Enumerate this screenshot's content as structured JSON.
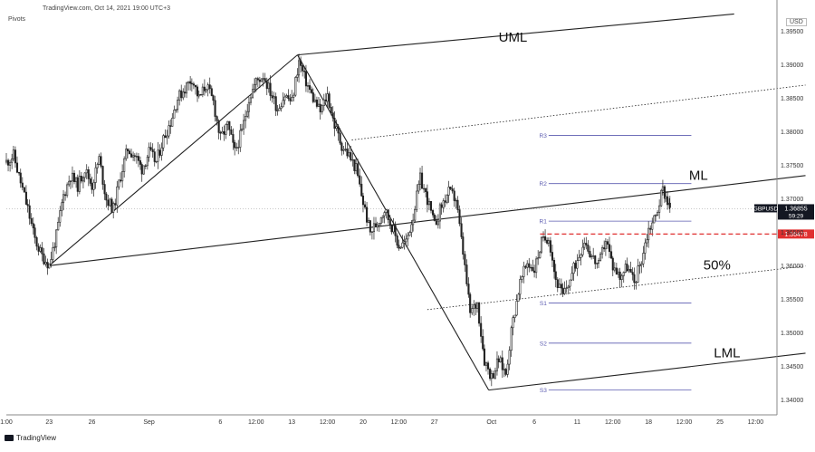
{
  "header": {
    "source": "TradingView.com, Oct 14, 2021 19:00 UTC+3",
    "indicator": "Pivots",
    "currency": "USD"
  },
  "footer": {
    "brand": "TradingView"
  },
  "colors": {
    "candle": "#222222",
    "pitchfork": "#222222",
    "pivot": "#5b5bb0",
    "level": "#e03030",
    "grid": "#c8c8c8"
  },
  "chart_data": {
    "type": "candlestick",
    "symbol": "GBPUSD",
    "timeframe": "1h",
    "y_axis": {
      "ticks": [
        "1.39500",
        "1.39000",
        "1.38500",
        "1.38000",
        "1.37500",
        "1.37000",
        "1.36500",
        "1.36000",
        "1.35500",
        "1.35000",
        "1.34500",
        "1.34000"
      ],
      "range": [
        1.3378,
        1.3978
      ]
    },
    "x_axis": {
      "ticks": [
        {
          "label": "1:00",
          "d": 0
        },
        {
          "label": "23",
          "d": 3
        },
        {
          "label": "26",
          "d": 6
        },
        {
          "label": "Sep",
          "d": 10
        },
        {
          "label": "6",
          "d": 15
        },
        {
          "label": "12:00",
          "d": 17.5
        },
        {
          "label": "13",
          "d": 20
        },
        {
          "label": "12:00",
          "d": 22.5
        },
        {
          "label": "20",
          "d": 25
        },
        {
          "label": "12:00",
          "d": 27.5
        },
        {
          "label": "27",
          "d": 30
        },
        {
          "label": "Oct",
          "d": 34
        },
        {
          "label": "6",
          "d": 37
        },
        {
          "label": "11",
          "d": 40
        },
        {
          "label": "12:00",
          "d": 42.5
        },
        {
          "label": "18",
          "d": 45
        },
        {
          "label": "12:00",
          "d": 47.5
        },
        {
          "label": "25",
          "d": 50
        },
        {
          "label": "12:00",
          "d": 52.5
        }
      ],
      "range": [
        0,
        54
      ]
    },
    "price_path": [
      [
        0,
        1.3755
      ],
      [
        0.5,
        1.3765
      ],
      [
        1,
        1.3725
      ],
      [
        1.5,
        1.3685
      ],
      [
        2,
        1.364
      ],
      [
        2.5,
        1.3615
      ],
      [
        3,
        1.3602
      ],
      [
        3.5,
        1.3645
      ],
      [
        4,
        1.3705
      ],
      [
        4.5,
        1.3735
      ],
      [
        5,
        1.372
      ],
      [
        5.5,
        1.3745
      ],
      [
        6,
        1.372
      ],
      [
        6.5,
        1.376
      ],
      [
        7,
        1.37
      ],
      [
        7.5,
        1.3685
      ],
      [
        8,
        1.3735
      ],
      [
        8.5,
        1.3775
      ],
      [
        9,
        1.3765
      ],
      [
        9.5,
        1.3745
      ],
      [
        10,
        1.377
      ],
      [
        10.5,
        1.3755
      ],
      [
        11,
        1.379
      ],
      [
        11.5,
        1.3815
      ],
      [
        12,
        1.385
      ],
      [
        12.5,
        1.3865
      ],
      [
        13,
        1.388
      ],
      [
        13.5,
        1.385
      ],
      [
        14,
        1.387
      ],
      [
        14.5,
        1.3845
      ],
      [
        15,
        1.379
      ],
      [
        15.5,
        1.381
      ],
      [
        16,
        1.377
      ],
      [
        16.5,
        1.38
      ],
      [
        17,
        1.385
      ],
      [
        17.5,
        1.3875
      ],
      [
        18,
        1.3885
      ],
      [
        18.5,
        1.386
      ],
      [
        19,
        1.3835
      ],
      [
        19.5,
        1.3855
      ],
      [
        20,
        1.3845
      ],
      [
        20.5,
        1.3905
      ],
      [
        21,
        1.3875
      ],
      [
        21.5,
        1.385
      ],
      [
        22,
        1.383
      ],
      [
        22.5,
        1.3855
      ],
      [
        23,
        1.381
      ],
      [
        23.5,
        1.378
      ],
      [
        24,
        1.3765
      ],
      [
        24.5,
        1.3745
      ],
      [
        25,
        1.3695
      ],
      [
        25.5,
        1.365
      ],
      [
        26,
        1.3665
      ],
      [
        26.5,
        1.3685
      ],
      [
        27,
        1.366
      ],
      [
        27.5,
        1.363
      ],
      [
        28,
        1.3635
      ],
      [
        28.5,
        1.3675
      ],
      [
        29,
        1.373
      ],
      [
        29.5,
        1.37
      ],
      [
        30,
        1.366
      ],
      [
        30.5,
        1.369
      ],
      [
        31,
        1.371
      ],
      [
        31.5,
        1.37
      ],
      [
        32,
        1.362
      ],
      [
        32.5,
        1.353
      ],
      [
        33,
        1.3545
      ],
      [
        33.5,
        1.346
      ],
      [
        34,
        1.3435
      ],
      [
        34.5,
        1.346
      ],
      [
        35,
        1.344
      ],
      [
        35.5,
        1.352
      ],
      [
        36,
        1.3575
      ],
      [
        36.5,
        1.3605
      ],
      [
        37,
        1.3595
      ],
      [
        37.5,
        1.3635
      ],
      [
        38,
        1.3645
      ],
      [
        38.5,
        1.358
      ],
      [
        39,
        1.3555
      ],
      [
        39.5,
        1.358
      ],
      [
        40,
        1.361
      ],
      [
        40.5,
        1.364
      ],
      [
        41,
        1.3615
      ],
      [
        41.5,
        1.36
      ],
      [
        42,
        1.364
      ],
      [
        42.5,
        1.36
      ],
      [
        43,
        1.3585
      ],
      [
        43.5,
        1.36
      ],
      [
        44,
        1.3575
      ],
      [
        44.5,
        1.361
      ],
      [
        45,
        1.3655
      ],
      [
        45.5,
        1.3675
      ],
      [
        46,
        1.3715
      ],
      [
        46.2,
        1.3705
      ],
      [
        46.5,
        1.3688
      ]
    ],
    "current_price": {
      "label": "GBPUSD",
      "value": "1.36855",
      "countdown": "59:29",
      "y": 1.36855
    },
    "level": {
      "value": "1.36478",
      "y": 1.36478,
      "x_start": 37.4
    },
    "pivots": [
      {
        "label": "R3",
        "y": 1.3795
      },
      {
        "label": "R2",
        "y": 1.3723
      },
      {
        "label": "R1",
        "y": 1.3667
      },
      {
        "label": "S1",
        "y": 1.3545
      },
      {
        "label": "S2",
        "y": 1.3485
      },
      {
        "label": "S3",
        "y": 1.3415
      }
    ],
    "pivot_range": [
      38,
      48
    ],
    "pitchfork": {
      "p0": [
        3,
        1.36005
      ],
      "p1": [
        20.4,
        1.3915
      ],
      "p2": [
        33.8,
        1.3415
      ],
      "median": [
        [
          3,
          1.36005
        ],
        [
          56,
          1.3735
        ]
      ],
      "upper": [
        [
          20.4,
          1.3915
        ],
        [
          51,
          1.3976
        ]
      ],
      "lower": [
        [
          33.8,
          1.3415
        ],
        [
          56,
          1.347
        ]
      ],
      "quarter_upper": [
        [
          24.2,
          1.3788
        ],
        [
          56,
          1.387
        ]
      ],
      "fifty_lower": [
        [
          29.5,
          1.3535
        ],
        [
          56,
          1.36
        ]
      ]
    },
    "annotations": [
      {
        "text": "UML",
        "x": 35.5,
        "y": 1.3935
      },
      {
        "text": "ML",
        "x": 48.5,
        "y": 1.3729
      },
      {
        "text": "50%",
        "x": 49.8,
        "y": 1.3595
      },
      {
        "text": "LML",
        "x": 50.5,
        "y": 1.3464
      }
    ]
  }
}
